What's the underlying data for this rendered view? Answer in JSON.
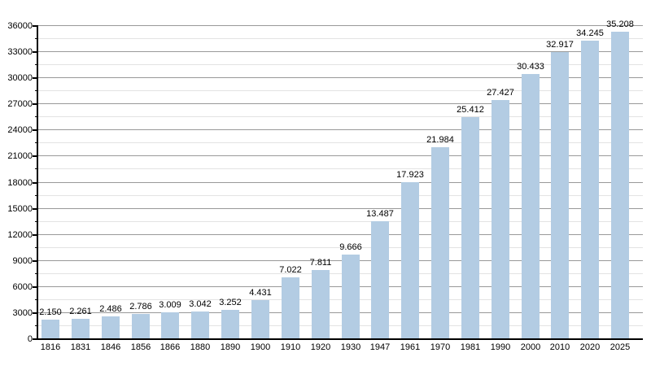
{
  "chart_data": {
    "type": "bar",
    "title": "",
    "xlabel": "",
    "ylabel": "",
    "categories": [
      "1816",
      "1831",
      "1846",
      "1856",
      "1866",
      "1880",
      "1890",
      "1900",
      "1910",
      "1920",
      "1930",
      "1947",
      "1961",
      "1970",
      "1981",
      "1990",
      "2000",
      "2010",
      "2020",
      "2025"
    ],
    "values": [
      2150,
      2261,
      2486,
      2786,
      3009,
      3042,
      3252,
      4431,
      7022,
      7811,
      9666,
      13487,
      17923,
      21984,
      25412,
      27427,
      30433,
      32917,
      34245,
      35208
    ],
    "value_labels": [
      "2.150",
      "2.261",
      "2.486",
      "2.786",
      "3.009",
      "3.042",
      "3.252",
      "4.431",
      "7.022",
      "7.811",
      "9.666",
      "13.487",
      "17.923",
      "21.984",
      "25.412",
      "27.427",
      "30.433",
      "32.917",
      "34.245",
      "35.208"
    ],
    "ylim": [
      0,
      36000
    ],
    "y_major_step": 3000,
    "y_minor_step": 1500,
    "y_tick_labels": [
      "0",
      "3000",
      "6000",
      "9000",
      "12000",
      "15000",
      "18000",
      "21000",
      "24000",
      "27000",
      "30000",
      "33000",
      "36000"
    ],
    "grid": "horizontal-major-and-minor",
    "legend": "none",
    "colors": {
      "bar_fill": "#b3cce3",
      "major_grid": "#999999",
      "minor_grid": "#e3e3e3",
      "axis": "#000000",
      "text": "#000000"
    }
  }
}
